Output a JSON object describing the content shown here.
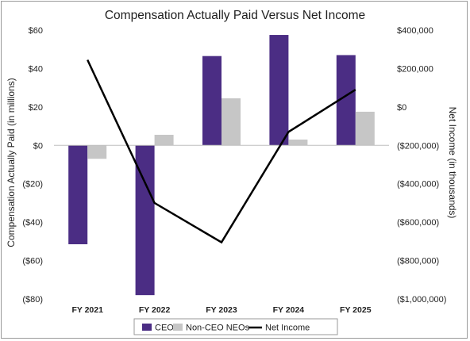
{
  "chart_data": {
    "type": "bar",
    "title": "Compensation Actually Paid Versus Net Income",
    "categories": [
      "FY 2021",
      "FY 2022",
      "FY 2023",
      "FY 2024",
      "FY 2025"
    ],
    "ylabel_left": "Compensation Actually Paid (in millions)",
    "ylabel_right": "Net Income (in thousands)",
    "ylim_left": [
      -80,
      60
    ],
    "ylim_right": [
      -1000000,
      400000
    ],
    "yticks_left": [
      "$60",
      "$40",
      "$20",
      "$0",
      "($20)",
      "($40)",
      "($60)",
      "($80)"
    ],
    "yticks_right": [
      "$400,000",
      "$200,000",
      "$0",
      "($200,000)",
      "($400,000)",
      "($600,000)",
      "($800,000)",
      "($1,000,000)"
    ],
    "series": [
      {
        "name": "CEO",
        "type": "bar",
        "axis": "left",
        "color": "#4b2d84",
        "values": [
          -51.5,
          -78,
          46.5,
          57.5,
          47
        ]
      },
      {
        "name": "Non-CEO NEOs",
        "type": "bar",
        "axis": "left",
        "color": "#c6c6c6",
        "values": [
          -7,
          5.5,
          24.5,
          3,
          17.5
        ]
      },
      {
        "name": "Net Income",
        "type": "line",
        "axis": "right",
        "color": "#000000",
        "values": [
          245000,
          -500000,
          -705000,
          -130000,
          90000
        ]
      }
    ],
    "grid": false,
    "legend_position": "bottom"
  }
}
